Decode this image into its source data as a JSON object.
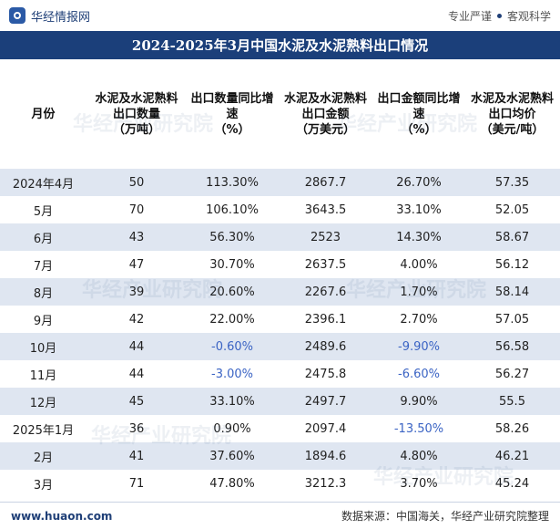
{
  "header": {
    "brand_name": "华经情报网",
    "slogan_left": "专业严谨",
    "slogan_right": "客观科学"
  },
  "title": "2024-2025年3月中国水泥及水泥熟料出口情况",
  "table": {
    "columns": [
      "月份",
      "水泥及水泥熟料出口数量\n（万吨）",
      "出口数量同比增速\n（%）",
      "水泥及水泥熟料出口金额\n（万美元）",
      "出口金额同比增速\n（%）",
      "水泥及水泥熟料出口均价\n（美元/吨）"
    ],
    "rows": [
      [
        "2024年4月",
        "50",
        "113.30%",
        "2867.7",
        "26.70%",
        "57.35"
      ],
      [
        "5月",
        "70",
        "106.10%",
        "3643.5",
        "33.10%",
        "52.05"
      ],
      [
        "6月",
        "43",
        "56.30%",
        "2523",
        "14.30%",
        "58.67"
      ],
      [
        "7月",
        "47",
        "30.70%",
        "2637.5",
        "4.00%",
        "56.12"
      ],
      [
        "8月",
        "39",
        "20.60%",
        "2267.6",
        "1.70%",
        "58.14"
      ],
      [
        "9月",
        "42",
        "22.00%",
        "2396.1",
        "2.70%",
        "57.05"
      ],
      [
        "10月",
        "44",
        "-0.60%",
        "2489.6",
        "-9.90%",
        "56.58"
      ],
      [
        "11月",
        "44",
        "-3.00%",
        "2475.8",
        "-6.60%",
        "56.27"
      ],
      [
        "12月",
        "45",
        "33.10%",
        "2497.7",
        "9.90%",
        "55.5"
      ],
      [
        "2025年1月",
        "36",
        "0.90%",
        "2097.4",
        "-13.50%",
        "58.26"
      ],
      [
        "2月",
        "41",
        "37.60%",
        "1894.6",
        "4.80%",
        "46.21"
      ],
      [
        "3月",
        "71",
        "47.80%",
        "3212.3",
        "3.70%",
        "45.24"
      ]
    ]
  },
  "footer": {
    "website": "www.huaon.com",
    "source": "数据来源：中国海关，华经产业研究院整理"
  },
  "watermark": "华经产业研究院",
  "colors": {
    "title_bg": "#1b3f7a",
    "stripe": "#dfe6f1",
    "negative": "#3b64c4"
  }
}
